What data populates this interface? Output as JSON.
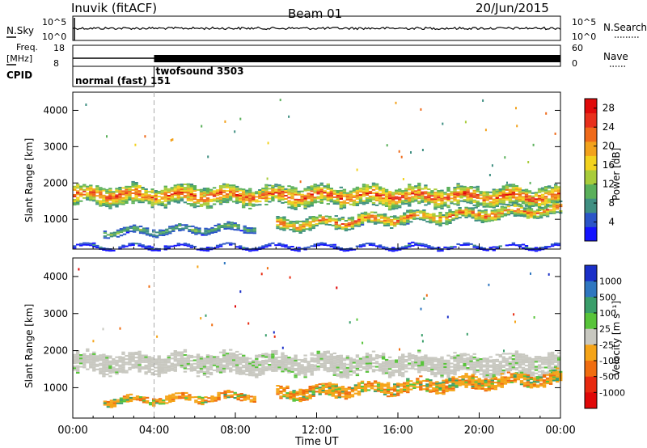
{
  "header": {
    "station": "Inuvik (fitACF)",
    "beam": "Beam 01",
    "date": "20/Jun/2015"
  },
  "noise_panel": {
    "left_label": "N.Sky",
    "right_label": "N.Search",
    "left_ticks": [
      "10^5",
      "10^0"
    ],
    "right_ticks": [
      "10^5",
      "10^0"
    ]
  },
  "freq_panel": {
    "left_label_1": "Freq.",
    "left_label_2": "[MHz]",
    "right_label": "Nave",
    "left_ticks": [
      "18",
      "8"
    ],
    "right_ticks": [
      "60",
      "0"
    ]
  },
  "cpid_panel": {
    "label": "CPID",
    "mode_1": "normal (fast) 151",
    "mode_2": "twofsound 3503",
    "switch_time_hours": 4.0
  },
  "chart_data": [
    {
      "type": "heatmap",
      "name": "power",
      "ylabel": "Slant Range [km]",
      "xlabel": "Time UT",
      "x_ticks": [
        "00:00",
        "04:00",
        "08:00",
        "12:00",
        "16:00",
        "20:00",
        "00:00"
      ],
      "xlim_hours": [
        0,
        24
      ],
      "ylim_km": [
        180,
        4500
      ],
      "y_ticks": [
        1000,
        2000,
        3000,
        4000
      ],
      "colorbar": {
        "label": "Power [dB]",
        "ticks": [
          4,
          8,
          12,
          16,
          20,
          24,
          28
        ],
        "range": [
          0,
          30
        ],
        "colors": [
          "#1414ff",
          "#2b55c8",
          "#3f8f82",
          "#5ab05a",
          "#a8cc3a",
          "#f2d21e",
          "#f2a21c",
          "#ef6a1a",
          "#e8301c",
          "#e00a0a"
        ]
      },
      "bands": [
        {
          "name": "upper",
          "t0": 0,
          "t1": 24,
          "center_km_start": 1650,
          "center_km_end": 1600,
          "half_width_km": 260,
          "peak_db": 26
        },
        {
          "name": "lower",
          "t0": 10,
          "t1": 24,
          "center_km_start": 820,
          "center_km_end": 1250,
          "half_width_km": 160,
          "peak_db": 24
        },
        {
          "name": "early-low",
          "t0": 1.5,
          "t1": 9,
          "center_km_start": 620,
          "center_km_end": 760,
          "half_width_km": 90,
          "peak_db": 12
        },
        {
          "name": "ground",
          "t0": 0,
          "t1": 24,
          "center_km_start": 230,
          "center_km_end": 230,
          "half_width_km": 40,
          "peak_db": 6
        }
      ]
    },
    {
      "type": "heatmap",
      "name": "velocity",
      "ylabel": "Slant Range [km]",
      "xlabel": "Time UT",
      "x_ticks": [
        "00:00",
        "04:00",
        "08:00",
        "12:00",
        "16:00",
        "20:00",
        "00:00"
      ],
      "xlim_hours": [
        0,
        24
      ],
      "ylim_km": [
        180,
        4500
      ],
      "y_ticks": [
        1000,
        2000,
        3000,
        4000
      ],
      "colorbar": {
        "label": "Velocity [m s⁻¹]",
        "ticks": [
          "1000",
          "500",
          "100",
          "25",
          "-25",
          "-100",
          "-500",
          "-1000"
        ],
        "colors": [
          "#1a2fc8",
          "#2f77c0",
          "#3a9e6a",
          "#58c43a",
          "#c8c8c0",
          "#f5a418",
          "#f06d10",
          "#e82a10",
          "#e00808"
        ]
      },
      "bands": [
        {
          "name": "groundscatter",
          "t0": 0,
          "t1": 24,
          "center_km_start": 1650,
          "center_km_end": 1600,
          "half_width_km": 260,
          "velocity": 0
        },
        {
          "name": "lower",
          "t0": 10,
          "t1": 24,
          "center_km_start": 820,
          "center_km_end": 1250,
          "half_width_km": 160,
          "velocity": -300
        },
        {
          "name": "early-low",
          "t0": 1.5,
          "t1": 9,
          "center_km_start": 620,
          "center_km_end": 760,
          "half_width_km": 90,
          "velocity": -400
        }
      ]
    }
  ],
  "x_axis_label": "Time UT"
}
